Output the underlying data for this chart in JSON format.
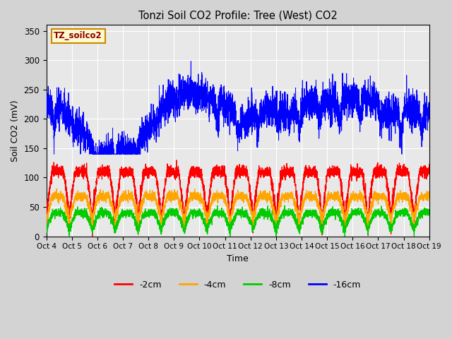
{
  "title": "Tonzi Soil CO2 Profile: Tree (West) CO2",
  "ylabel": "Soil CO2 (mV)",
  "xlabel": "Time",
  "legend_label": "TZ_soilco2",
  "ylim": [
    0,
    360
  ],
  "yticks": [
    0,
    50,
    100,
    150,
    200,
    250,
    300,
    350
  ],
  "x_tick_labels": [
    "Oct 4",
    "Oct 5",
    "Oct 6",
    "Oct 7",
    "Oct 8",
    "Oct 9",
    "Oct 10",
    "Oct 11",
    "Oct 12",
    "Oct 13",
    "Oct 14",
    "Oct 15",
    "Oct 16",
    "Oct 17",
    "Oct 18",
    "Oct 19"
  ],
  "n_days": 15,
  "n_points": 4000,
  "colors": {
    "minus2cm": "#ff0000",
    "minus4cm": "#ffa500",
    "minus8cm": "#00cc00",
    "minus16cm": "#0000ff"
  },
  "legend_entries": [
    "-2cm",
    "-4cm",
    "-8cm",
    "-16cm"
  ],
  "legend_colors": [
    "#ff0000",
    "#ffa500",
    "#00cc00",
    "#0000ff"
  ],
  "fig_bg": "#d3d3d3",
  "plot_bg": "#e8e8e8",
  "figsize": [
    6.4,
    4.8
  ],
  "dpi": 100
}
